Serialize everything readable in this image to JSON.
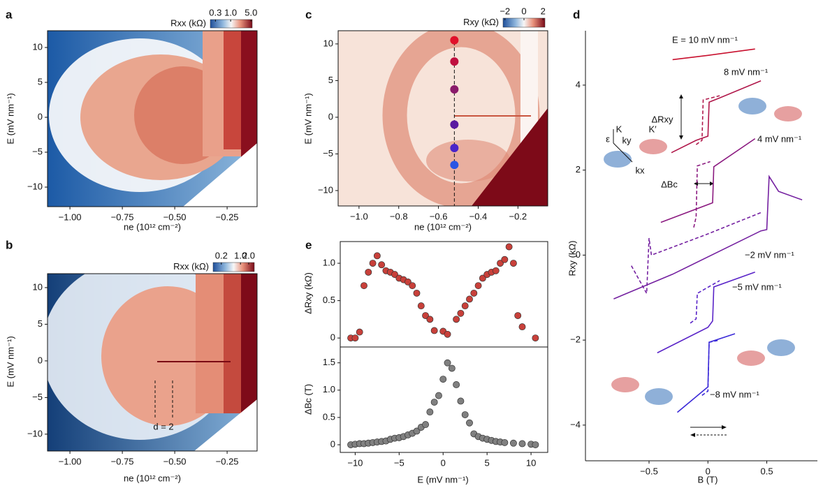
{
  "chart_data": [
    {
      "type": "heatmap",
      "panel": "a",
      "xlabel": "ne (10¹² cm⁻²)",
      "ylabel": "E (mV nm⁻¹)",
      "xlim": [
        -1.107,
        -0.107
      ],
      "ylim": [
        -12.8,
        12.4
      ],
      "xticks": [
        {
          "value": -1,
          "label": "−1.00"
        },
        {
          "value": -0.75,
          "label": "−0.75"
        },
        {
          "value": -0.5,
          "label": "−0.50"
        },
        {
          "value": -0.25,
          "label": "−0.25"
        }
      ],
      "yticks": [
        {
          "value": -10,
          "label": "−10"
        },
        {
          "value": -5,
          "label": "−5"
        },
        0,
        5,
        10
      ],
      "colorbar": {
        "label": "Rxx (kΩ)",
        "log": true,
        "lim": [
          0.2,
          5.5
        ],
        "ticks": [
          0.3,
          {
            "value": 1,
            "label": "1.0"
          },
          {
            "value": 5,
            "label": "5.0"
          }
        ]
      }
    },
    {
      "type": "heatmap",
      "panel": "b",
      "xlabel": "ne (10¹² cm⁻²)",
      "ylabel": "E (mV nm⁻¹)",
      "xlim": [
        -1.107,
        -0.107
      ],
      "ylim": [
        -12.3,
        11.9
      ],
      "xticks": [
        {
          "value": -1,
          "label": "−1.00"
        },
        {
          "value": -0.75,
          "label": "−0.75"
        },
        {
          "value": -0.5,
          "label": "−0.50"
        },
        {
          "value": -0.25,
          "label": "−0.25"
        }
      ],
      "yticks": [
        {
          "value": -10,
          "label": "−10"
        },
        {
          "value": -5,
          "label": "−5"
        },
        0,
        5,
        10
      ],
      "colorbar": {
        "label": "Rxx (kΩ)",
        "log": true,
        "lim": [
          0.1,
          3.2
        ],
        "ticks": [
          0.2,
          {
            "value": 1,
            "label": "1.0"
          },
          {
            "value": 2,
            "label": "2.0"
          }
        ]
      },
      "annotations": [
        "d = 2"
      ]
    },
    {
      "type": "heatmap",
      "panel": "c",
      "xlabel": "ne (10¹² cm⁻²)",
      "ylabel": "E (mV nm⁻¹)",
      "xlim": [
        -1.105,
        -0.05
      ],
      "ylim": [
        -12.1,
        11.8
      ],
      "xticks": [
        {
          "value": -1,
          "label": "−1.0"
        },
        {
          "value": -0.8,
          "label": "−0.8"
        },
        {
          "value": -0.6,
          "label": "−0.6"
        },
        {
          "value": -0.4,
          "label": "−0.4"
        },
        {
          "value": -0.2,
          "label": "−0.2"
        }
      ],
      "yticks": [
        {
          "value": -10,
          "label": "−10"
        },
        {
          "value": -5,
          "label": "−5"
        },
        0,
        5,
        10
      ],
      "colorbar": {
        "label": "Rxy (kΩ)",
        "log": false,
        "lim": [
          -2.2,
          2.2
        ],
        "ticks": [
          {
            "value": -2,
            "label": "−2"
          },
          0,
          2
        ]
      },
      "series": [
        {
          "x": [
            -0.52,
            -0.52,
            -0.52,
            -0.52,
            -0.52,
            -0.52
          ],
          "values": [
            10.5,
            7.6,
            3.8,
            -1,
            -4.2,
            -6.5
          ],
          "colors": [
            "#e0102a",
            "#c0103f",
            "#8a1a6a",
            "#5a1aa0",
            "#4a24c8",
            "#2a55e4"
          ]
        }
      ]
    },
    {
      "type": "scatter",
      "panel": "e",
      "ylabel": "ΔRxy (kΩ)",
      "color": "#c8403a",
      "xlim": [
        -11.7,
        11.9
      ],
      "ylim": [
        -0.12,
        1.29
      ],
      "yticks": [
        0,
        0.5,
        {
          "value": 1,
          "label": "1.0"
        }
      ],
      "x": [
        -10.5,
        -10,
        -9.5,
        -9,
        -8.5,
        -8,
        -7.5,
        -7,
        -6.5,
        -6,
        -5.5,
        -5,
        -4.5,
        -4,
        -3.5,
        -3,
        -2.5,
        -2,
        -1.5,
        -1,
        0,
        0.5,
        1.5,
        2,
        2.5,
        3,
        3.5,
        4,
        4.5,
        5,
        5.5,
        6,
        6.5,
        7,
        7.5,
        8,
        8.5,
        9,
        10.5
      ],
      "values": [
        0,
        0,
        0.08,
        0.7,
        0.88,
        1.0,
        1.1,
        0.98,
        0.9,
        0.88,
        0.85,
        0.8,
        0.78,
        0.75,
        0.7,
        0.6,
        0.43,
        0.3,
        0.25,
        0.1,
        0.09,
        0.05,
        0.25,
        0.33,
        0.43,
        0.52,
        0.6,
        0.7,
        0.8,
        0.85,
        0.88,
        0.9,
        1.0,
        1.05,
        1.22,
        1.0,
        0.3,
        0.15,
        0
      ]
    },
    {
      "type": "scatter",
      "xlabel": "E (mV nm⁻¹)",
      "ylabel": "ΔBc (T)",
      "color": "#808080",
      "xlim": [
        -11.7,
        11.9
      ],
      "ylim": [
        -0.14,
        1.79
      ],
      "xticks": [
        {
          "value": -10,
          "label": "−10"
        },
        {
          "value": -5,
          "label": "−5"
        },
        0,
        5,
        10
      ],
      "yticks": [
        0,
        0.5,
        {
          "value": 1,
          "label": "1.0"
        },
        1.5
      ],
      "x": [
        -10.5,
        -10,
        -9.5,
        -9,
        -8.5,
        -8,
        -7.5,
        -7,
        -6.5,
        -6,
        -5.5,
        -5,
        -4.5,
        -4,
        -3.5,
        -3,
        -2.5,
        -2,
        -1.5,
        -1,
        -0.5,
        0,
        0.5,
        1,
        1.5,
        2,
        2.5,
        3,
        3.5,
        4,
        4.5,
        5,
        5.5,
        6,
        6.5,
        7,
        8,
        9,
        10,
        10.5
      ],
      "values": [
        0,
        0.01,
        0.02,
        0.02,
        0.03,
        0.04,
        0.05,
        0.06,
        0.07,
        0.1,
        0.12,
        0.13,
        0.15,
        0.18,
        0.21,
        0.25,
        0.32,
        0.37,
        0.6,
        0.78,
        0.9,
        1.2,
        1.5,
        1.4,
        1.1,
        0.8,
        0.55,
        0.4,
        0.2,
        0.15,
        0.12,
        0.1,
        0.08,
        0.06,
        0.05,
        0.04,
        0.03,
        0.02,
        0.01,
        0
      ]
    },
    {
      "type": "line",
      "panel": "d",
      "xlabel": "B (T)",
      "ylabel": "Rxy (kΩ)",
      "xlim": [
        -1.04,
        0.93
      ],
      "ylim": [
        -4.84,
        5.28
      ],
      "xticks": [
        {
          "value": -0.5,
          "label": "−0.5"
        },
        0,
        0.5
      ],
      "yticks": [
        {
          "value": -4,
          "label": "−4"
        },
        {
          "value": -2,
          "label": "−2"
        },
        0,
        2,
        4
      ],
      "annotations": [
        "ΔRxy",
        "ΔBc",
        "K",
        "K′",
        "ε",
        "ky",
        "kx"
      ],
      "series": [
        {
          "name": "E = 10 mV nm⁻¹",
          "color": "#c8102e",
          "style": "solid",
          "x": [
            -0.3,
            0,
            0.4
          ],
          "values": [
            4.6,
            4.7,
            4.85
          ]
        },
        {
          "name": "8 mV nm⁻¹",
          "color": "#b0174a",
          "style": "solid",
          "x": [
            -0.31,
            -0.1,
            0,
            0.01,
            0.1,
            0.45
          ],
          "values": [
            2.41,
            2.7,
            2.8,
            3.6,
            3.7,
            4.1
          ]
        },
        {
          "color": "#b0174a",
          "style": "dashed",
          "x": [
            -0.1,
            -0.05,
            -0.04,
            0.1
          ],
          "values": [
            2.6,
            2.7,
            3.65,
            3.75
          ]
        },
        {
          "name": "4 mV nm⁻¹",
          "color": "#8b1a80",
          "style": "solid",
          "x": [
            -0.4,
            0.04,
            0.05,
            0.4
          ],
          "values": [
            0.77,
            1.23,
            2.08,
            2.74
          ]
        },
        {
          "color": "#8b1a80",
          "style": "dashed",
          "x": [
            -0.12,
            -0.1,
            -0.09,
            0.02
          ],
          "values": [
            0.65,
            0.9,
            2.1,
            2.2
          ]
        },
        {
          "name": "−2 mV nm⁻¹",
          "color": "#7420a0",
          "style": "solid",
          "x": [
            -0.8,
            -0.3,
            0.45,
            0.5,
            0.52,
            0.6,
            0.8
          ],
          "values": [
            -1.03,
            -0.45,
            0.57,
            0.6,
            1.85,
            1.5,
            1.3
          ]
        },
        {
          "color": "#7420a0",
          "style": "dashed",
          "x": [
            -0.65,
            -0.52,
            -0.5,
            -0.48,
            0,
            0.45
          ],
          "values": [
            -0.25,
            -0.9,
            0.4,
            0,
            0.5,
            1.0
          ]
        },
        {
          "name": "−5 mV nm⁻¹",
          "color": "#5a24c8",
          "style": "solid",
          "x": [
            -0.43,
            0,
            0.04,
            0.05,
            0.4
          ],
          "values": [
            -2.3,
            -1.7,
            -1.55,
            -0.75,
            -0.4
          ]
        },
        {
          "color": "#5a24c8",
          "style": "dashed",
          "x": [
            -0.15,
            -0.1,
            -0.09,
            0.1
          ],
          "values": [
            -1.6,
            -1.5,
            -0.9,
            -0.6
          ]
        },
        {
          "name": "−8 mV nm⁻¹",
          "color": "#3b2ad8",
          "style": "solid",
          "x": [
            -0.26,
            0,
            0.01,
            0.23
          ],
          "values": [
            -3.7,
            -3.1,
            -2.05,
            -1.85
          ]
        },
        {
          "color": "#3b2ad8",
          "style": "dashed",
          "x": [
            -0.05,
            0,
            0.01,
            0.1
          ],
          "values": [
            -3.3,
            -3.2,
            -2.05,
            -2.0
          ]
        }
      ]
    }
  ]
}
